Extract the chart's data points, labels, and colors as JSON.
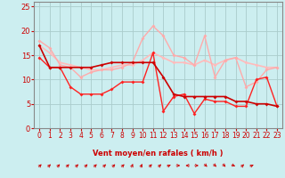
{
  "bg_color": "#cceef0",
  "grid_color": "#aacccc",
  "xlabel": "Vent moyen/en rafales ( km/h )",
  "xlim": [
    -0.5,
    23.5
  ],
  "ylim": [
    0,
    26
  ],
  "yticks": [
    0,
    5,
    10,
    15,
    20,
    25
  ],
  "xticks": [
    0,
    1,
    2,
    3,
    4,
    5,
    6,
    7,
    8,
    9,
    10,
    11,
    12,
    13,
    14,
    15,
    16,
    17,
    18,
    19,
    20,
    21,
    22,
    23
  ],
  "line1_color": "#cc0000",
  "line2_color": "#ff2222",
  "line3_color": "#ffaaaa",
  "line4_color": "#ffbbbb",
  "line1": [
    17,
    12.5,
    12.5,
    12.5,
    12.5,
    12.5,
    13,
    13.5,
    13.5,
    13.5,
    13.5,
    13.5,
    10.5,
    7,
    6.5,
    6.5,
    6.5,
    6.5,
    6.5,
    5.5,
    5.5,
    5,
    5,
    4.5
  ],
  "line2": [
    14.5,
    12.5,
    12.5,
    8.5,
    7,
    7,
    7,
    8,
    9.5,
    9.5,
    9.5,
    15.5,
    3.5,
    6.5,
    7,
    3,
    6,
    5.5,
    5.5,
    4.5,
    4.5,
    10,
    10.5,
    4.5
  ],
  "line3": [
    18,
    16.5,
    13,
    12.5,
    10.5,
    11.5,
    12,
    12,
    12.5,
    13.5,
    18.5,
    21,
    19,
    15,
    14.5,
    13,
    19,
    10.5,
    14,
    14.5,
    8.5,
    9.5,
    12,
    12.5
  ],
  "line4": [
    17,
    15.5,
    13.5,
    13,
    12.5,
    12,
    12,
    12.5,
    13,
    13,
    14,
    15.5,
    14.5,
    13.5,
    13.5,
    13,
    14,
    13,
    14,
    14.5,
    13.5,
    13,
    12.5,
    12.5
  ],
  "arrow_angles": [
    225,
    225,
    225,
    225,
    225,
    225,
    225,
    225,
    225,
    225,
    202,
    202,
    225,
    225,
    247,
    270,
    90,
    270,
    315,
    315,
    315,
    292,
    225,
    247
  ],
  "arrow_color": "#cc0000"
}
